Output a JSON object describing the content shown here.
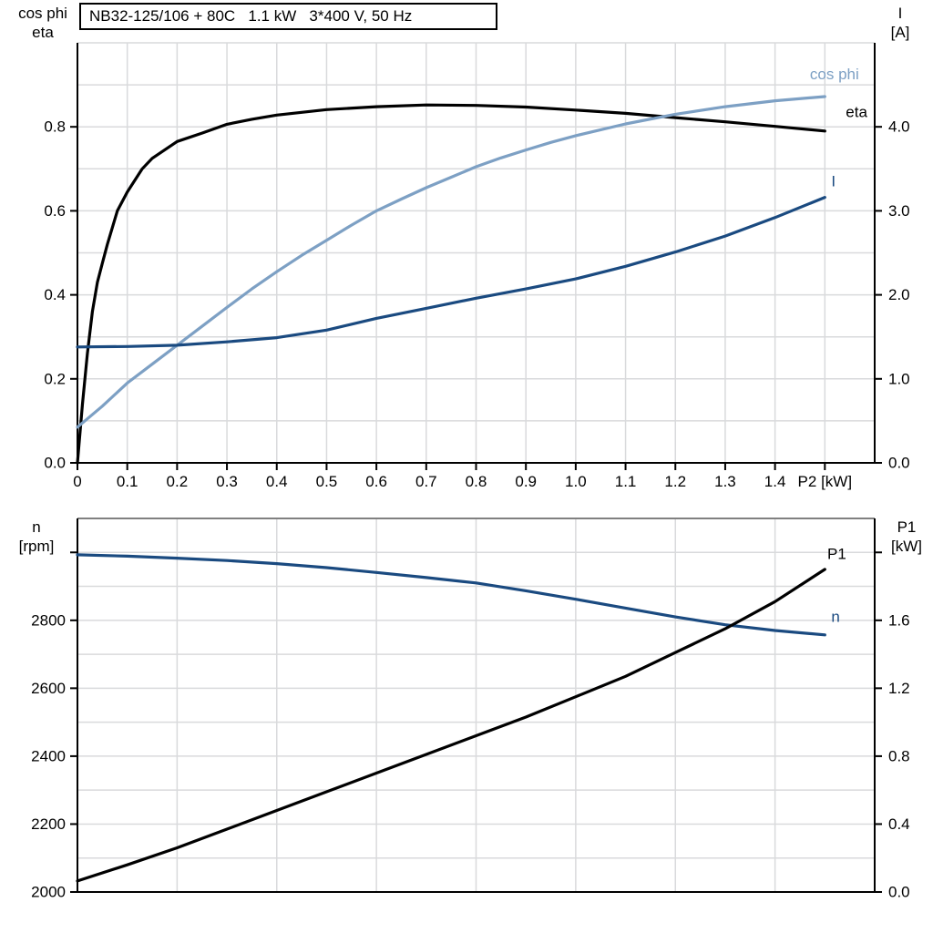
{
  "title": "NB32-125/106 + 80C   1.1 kW   3*400 V, 50 Hz",
  "colors": {
    "eta": "#000000",
    "cos_phi": "#7DA0C4",
    "current": "#1A4A80",
    "speed": "#1A4A80",
    "p1": "#000000",
    "grid": "#D9DADC",
    "axis": "#000000",
    "frame_gray": "#808080",
    "background": "#FFFFFF",
    "text": "#000000"
  },
  "headers": {
    "top_left": [
      "cos phi",
      "eta"
    ],
    "top_right": [
      "I",
      "[A]"
    ],
    "bottom_left": [
      "n",
      "[rpm]"
    ],
    "bottom_right": [
      "P1",
      "[kW]"
    ]
  },
  "chart_data": [
    {
      "type": "line",
      "title": "NB32-125/106 + 80C   1.1 kW   3*400 V, 50 Hz",
      "xlabel": "P2 [kW]",
      "xlabel_x": 1.5,
      "x_range": [
        0,
        1.6
      ],
      "x_grid_step": 0.1,
      "x_ticks": [
        0,
        0.1,
        0.2,
        0.3,
        0.4,
        0.5,
        0.6,
        0.7,
        0.8,
        0.9,
        1.0,
        1.1,
        1.2,
        1.3,
        1.4,
        1.5
      ],
      "x_tick_labels": [
        "0",
        "0.1",
        "0.2",
        "0.3",
        "0.4",
        "0.5",
        "0.6",
        "0.7",
        "0.8",
        "0.9",
        "1.0",
        "1.1",
        "1.2",
        "1.3",
        "1.4",
        ""
      ],
      "left_axis": {
        "label": "cos phi / eta",
        "range": [
          0,
          1.0
        ],
        "grid_step": 0.1,
        "ticks": [
          0,
          0.2,
          0.4,
          0.6,
          0.8
        ],
        "tick_labels": [
          "0.0",
          "0.2",
          "0.4",
          "0.6",
          "0.8"
        ]
      },
      "right_axis": {
        "label": "I [A]",
        "range": [
          0,
          5.0
        ],
        "grid_step": 0.5,
        "ticks": [
          0,
          1,
          2,
          3,
          4
        ],
        "tick_labels": [
          "0.0",
          "1.0",
          "2.0",
          "3.0",
          "4.0"
        ]
      },
      "series": [
        {
          "name": "eta",
          "axis": "left",
          "color_key": "eta",
          "label": "eta",
          "label_at": {
            "x": 1.542,
            "y": 0.835
          },
          "x": [
            0,
            0.01,
            0.02,
            0.03,
            0.04,
            0.05,
            0.06,
            0.08,
            0.1,
            0.13,
            0.15,
            0.2,
            0.25,
            0.3,
            0.35,
            0.4,
            0.5,
            0.6,
            0.7,
            0.8,
            0.9,
            1.0,
            1.1,
            1.2,
            1.3,
            1.4,
            1.5
          ],
          "y": [
            0,
            0.14,
            0.26,
            0.36,
            0.43,
            0.475,
            0.52,
            0.6,
            0.645,
            0.7,
            0.725,
            0.765,
            0.785,
            0.806,
            0.818,
            0.828,
            0.841,
            0.848,
            0.852,
            0.851,
            0.847,
            0.84,
            0.832,
            0.822,
            0.812,
            0.801,
            0.79
          ]
        },
        {
          "name": "cos phi",
          "axis": "left",
          "color_key": "cos_phi",
          "label": "cos phi",
          "label_at": {
            "x": 1.47,
            "y": 0.925
          },
          "x": [
            0,
            0.05,
            0.1,
            0.15,
            0.2,
            0.25,
            0.3,
            0.35,
            0.4,
            0.45,
            0.5,
            0.55,
            0.6,
            0.65,
            0.7,
            0.75,
            0.8,
            0.85,
            0.9,
            0.95,
            1.0,
            1.1,
            1.2,
            1.3,
            1.4,
            1.5
          ],
          "y": [
            0.085,
            0.135,
            0.19,
            0.235,
            0.28,
            0.325,
            0.37,
            0.414,
            0.455,
            0.494,
            0.53,
            0.566,
            0.6,
            0.628,
            0.655,
            0.68,
            0.705,
            0.726,
            0.745,
            0.763,
            0.779,
            0.807,
            0.83,
            0.848,
            0.862,
            0.872
          ]
        },
        {
          "name": "I",
          "axis": "right",
          "color_key": "current",
          "label": "I",
          "label_at": {
            "x": 1.513,
            "y": 3.35
          },
          "x": [
            0,
            0.1,
            0.2,
            0.3,
            0.4,
            0.5,
            0.6,
            0.7,
            0.8,
            0.9,
            1.0,
            1.1,
            1.2,
            1.3,
            1.4,
            1.5
          ],
          "y": [
            1.38,
            1.385,
            1.4,
            1.44,
            1.49,
            1.58,
            1.72,
            1.84,
            1.96,
            2.07,
            2.19,
            2.34,
            2.51,
            2.7,
            2.92,
            3.16
          ]
        }
      ]
    },
    {
      "type": "line",
      "title": "",
      "xlabel": "",
      "xlabel_x": null,
      "x_range": [
        0,
        1.6
      ],
      "x_grid_step": 0.2,
      "x_ticks": [],
      "x_tick_labels": [],
      "left_axis": {
        "label": "n [rpm]",
        "range": [
          2000,
          3100
        ],
        "grid_step": 100,
        "ticks": [
          2000,
          2200,
          2400,
          2600,
          2800,
          3000
        ],
        "tick_labels": [
          "2000",
          "2200",
          "2400",
          "2600",
          "2800",
          ""
        ]
      },
      "right_axis": {
        "label": "P1 [kW]",
        "range": [
          0,
          2.2
        ],
        "grid_step": 0.2,
        "ticks": [
          0,
          0.4,
          0.8,
          1.2,
          1.6,
          2.0
        ],
        "tick_labels": [
          "0.0",
          "0.4",
          "0.8",
          "1.2",
          "1.6",
          ""
        ]
      },
      "series": [
        {
          "name": "n",
          "axis": "left",
          "color_key": "speed",
          "label": "n",
          "label_at": {
            "x": 1.513,
            "y": 2810
          },
          "x": [
            0,
            0.1,
            0.2,
            0.3,
            0.4,
            0.5,
            0.6,
            0.7,
            0.8,
            0.9,
            1.0,
            1.1,
            1.2,
            1.3,
            1.4,
            1.5
          ],
          "y": [
            2993,
            2989,
            2983,
            2976,
            2967,
            2955,
            2941,
            2926,
            2910,
            2887,
            2862,
            2836,
            2810,
            2787,
            2770,
            2757
          ]
        },
        {
          "name": "P1",
          "axis": "right",
          "color_key": "p1",
          "label": "P1",
          "label_at": {
            "x": 1.505,
            "y": 1.99
          },
          "x": [
            0,
            0.1,
            0.2,
            0.3,
            0.4,
            0.5,
            0.6,
            0.7,
            0.8,
            0.9,
            1.0,
            1.1,
            1.2,
            1.3,
            1.4,
            1.5
          ],
          "y": [
            0.065,
            0.16,
            0.26,
            0.37,
            0.48,
            0.59,
            0.7,
            0.81,
            0.92,
            1.03,
            1.15,
            1.27,
            1.41,
            1.55,
            1.71,
            1.9
          ]
        }
      ]
    }
  ]
}
